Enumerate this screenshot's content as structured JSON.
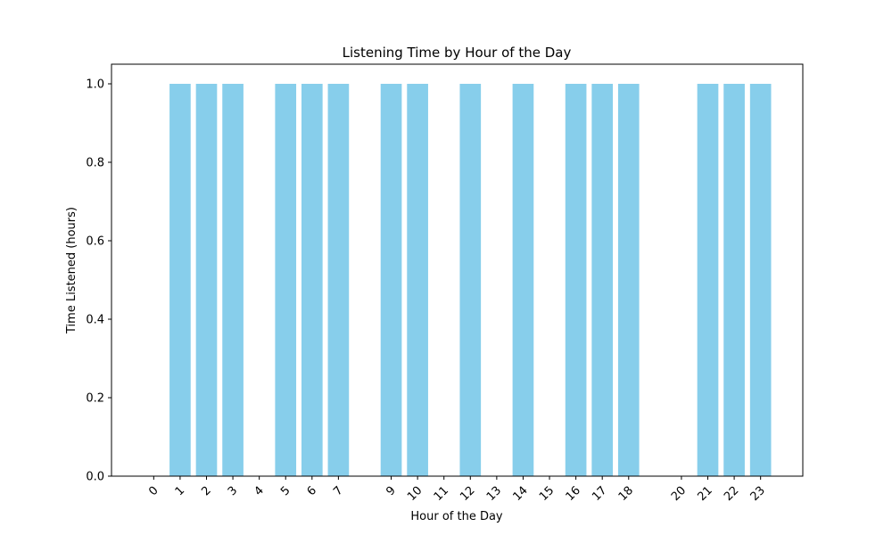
{
  "chart_data": {
    "type": "bar",
    "title": "Listening Time by Hour of the Day",
    "xlabel": "Hour of the Day",
    "ylabel": "Time Listened (hours)",
    "categories": [
      "0",
      "1",
      "2",
      "3",
      "4",
      "5",
      "6",
      "7",
      "9",
      "10",
      "11",
      "12",
      "13",
      "14",
      "15",
      "16",
      "17",
      "18",
      "20",
      "21",
      "22",
      "23"
    ],
    "x": [
      0,
      1,
      2,
      3,
      4,
      5,
      6,
      7,
      9,
      10,
      11,
      12,
      13,
      14,
      15,
      16,
      17,
      18,
      20,
      21,
      22,
      23
    ],
    "values": [
      0,
      1,
      1,
      1,
      0,
      1,
      1,
      1,
      1,
      1,
      0,
      1,
      0,
      1,
      0,
      1,
      1,
      1,
      0,
      1,
      1,
      1
    ],
    "ylim": [
      0,
      1.05
    ],
    "yticks": [
      "0.0",
      "0.2",
      "0.4",
      "0.6",
      "0.8",
      "1.0"
    ],
    "bar_color": "#87ceeb",
    "grid": false
  }
}
